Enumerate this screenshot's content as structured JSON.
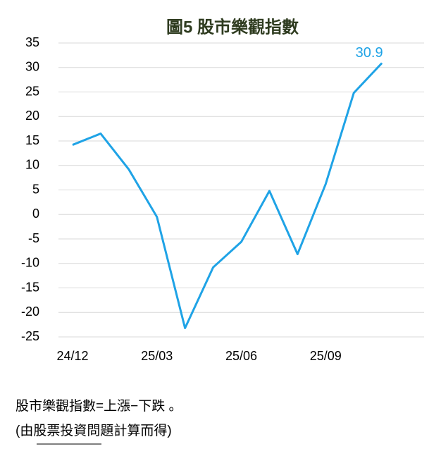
{
  "chart_data": {
    "type": "line",
    "title": "圖5  股市樂觀指數",
    "categories": [
      "24/12",
      null,
      null,
      "25/03",
      null,
      null,
      "25/06",
      null,
      null,
      "25/09",
      null,
      null
    ],
    "series": [
      {
        "name": "股市樂觀指數",
        "color": "#1fa3e6",
        "values": [
          14.2,
          16.5,
          9.2,
          -0.5,
          -23.2,
          -10.8,
          -5.6,
          4.8,
          -8.1,
          6.2,
          24.8,
          30.9
        ]
      }
    ],
    "ylim": [
      -25,
      35
    ],
    "yticks": [
      -25,
      -20,
      -15,
      -10,
      -5,
      0,
      5,
      10,
      15,
      20,
      25,
      30,
      35
    ],
    "grid": true,
    "notes": [
      "股市樂觀指數=上漲−下跌 。",
      "(由股票投資問題計算而得)"
    ]
  }
}
